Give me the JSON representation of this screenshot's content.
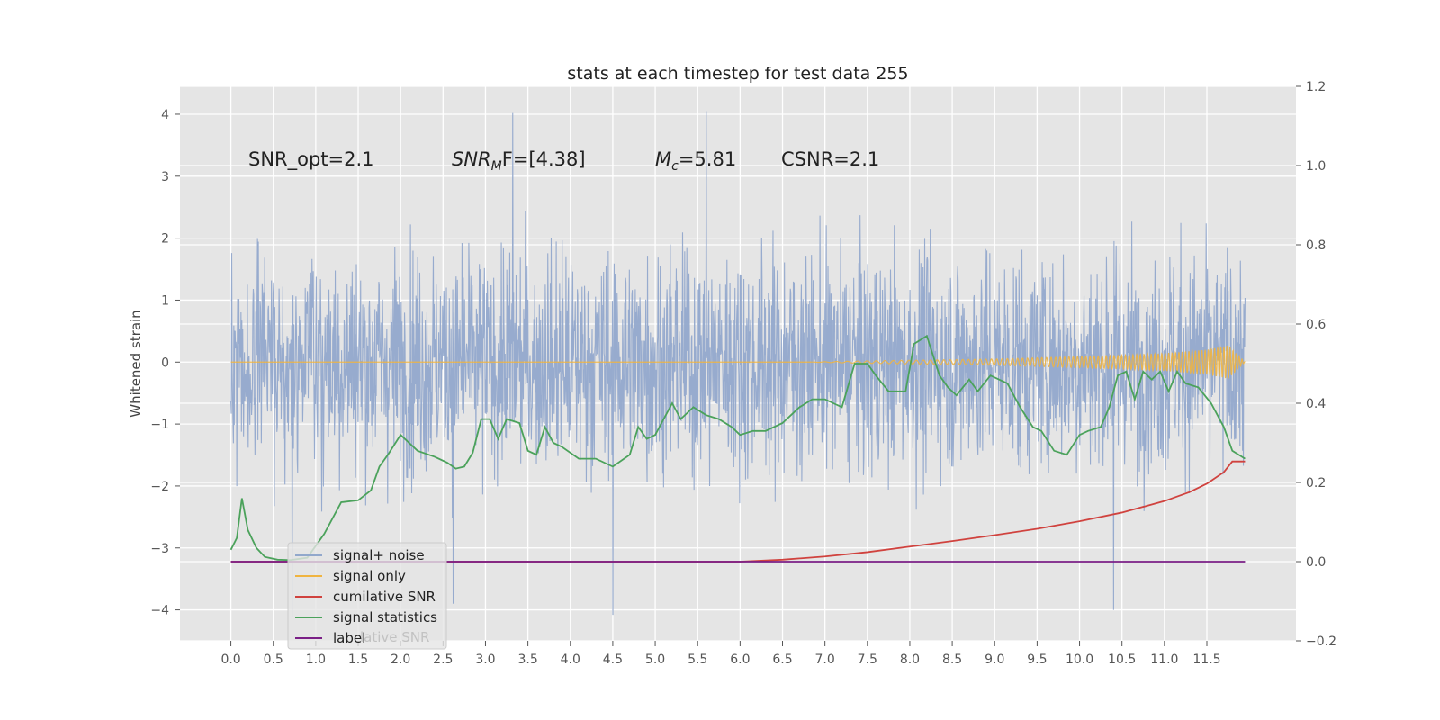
{
  "chart_data": {
    "type": "line",
    "title": "stats at each timestep for test data 255",
    "ylabel": "Whitened strain",
    "xlabel": "",
    "xlim": [
      -0.6,
      12.55
    ],
    "ylim": [
      -4.5,
      4.45
    ],
    "y2lim": [
      -0.2,
      1.2
    ],
    "x_ticks": [
      0.0,
      0.5,
      1.0,
      1.5,
      2.0,
      2.5,
      3.0,
      3.5,
      4.0,
      4.5,
      5.0,
      5.5,
      6.0,
      6.5,
      7.0,
      7.5,
      8.0,
      8.5,
      9.0,
      9.5,
      10.0,
      10.5,
      11.0,
      11.5
    ],
    "x_tick_labels": [
      "0.0",
      "0.5",
      "1.0",
      "1.5",
      "2.0",
      "2.5",
      "3.0",
      "3.5",
      "4.0",
      "4.5",
      "5.0",
      "5.5",
      "6.0",
      "6.5",
      "7.0",
      "7.5",
      "8.0",
      "8.5",
      "9.0",
      "9.5",
      "10.0",
      "10.5",
      "11.0",
      "11.5"
    ],
    "y_ticks": [
      -4,
      -3,
      -2,
      -1,
      0,
      1,
      2,
      3,
      4
    ],
    "y_tick_labels": [
      "−4",
      "−3",
      "−2",
      "−1",
      "0",
      "1",
      "2",
      "3",
      "4"
    ],
    "y2_ticks": [
      -0.2,
      0.0,
      0.2,
      0.4,
      0.6,
      0.8,
      1.0,
      1.2
    ],
    "y2_tick_labels": [
      "−0.2",
      "0.0",
      "0.2",
      "0.4",
      "0.6",
      "0.8",
      "1.0",
      "1.2"
    ],
    "grid": true,
    "annotations": [
      "SNR_opt=2.1",
      "SNR",
      "M",
      "F=[4.38]",
      "c",
      "=5.81",
      "CSNR=2.1"
    ],
    "legend_position": "lower-left",
    "legend": [
      "signal+ noise",
      "signal only",
      "cumilative SNR",
      "signal statistics",
      "label"
    ],
    "legend_overlap_text": "lative SNR",
    "series": [
      {
        "name": "signal+ noise",
        "axis": "left",
        "color": "#92a8cc",
        "style": "dense noise between about -3.5 and +3.5, samples from x=0.0 to 11.95",
        "x_range": [
          0.0,
          11.95
        ],
        "envelope": [
          -3.6,
          3.6
        ],
        "peaks": [
          [
            3.32,
            4.02
          ],
          [
            5.6,
            4.05
          ],
          [
            0.72,
            -4.12
          ],
          [
            4.5,
            -4.08
          ],
          [
            10.4,
            -4.0
          ],
          [
            2.62,
            -3.9
          ]
        ]
      },
      {
        "name": "signal only",
        "axis": "left",
        "color": "#f0b440",
        "x": [
          6.8,
          7.5,
          8.0,
          8.5,
          9.0,
          9.5,
          10.0,
          10.5,
          11.0,
          11.5,
          11.75,
          11.95
        ],
        "amplitude": [
          0.0,
          0.02,
          0.03,
          0.04,
          0.05,
          0.07,
          0.09,
          0.11,
          0.14,
          0.2,
          0.27,
          0.0
        ]
      },
      {
        "name": "cumilative SNR",
        "axis": "right",
        "color": "#d0423e",
        "x": [
          0.0,
          6.0,
          6.5,
          7.0,
          7.5,
          8.0,
          8.5,
          9.0,
          9.5,
          10.0,
          10.5,
          11.0,
          11.3,
          11.5,
          11.7,
          11.8,
          11.95
        ],
        "y": [
          0.0,
          0.0,
          0.005,
          0.013,
          0.024,
          0.038,
          0.052,
          0.067,
          0.083,
          0.102,
          0.124,
          0.153,
          0.176,
          0.197,
          0.226,
          0.253,
          0.253
        ]
      },
      {
        "name": "signal statistics",
        "axis": "right",
        "color": "#4ba25b",
        "x": [
          0.0,
          0.07,
          0.13,
          0.2,
          0.3,
          0.4,
          0.55,
          0.7,
          0.9,
          1.1,
          1.3,
          1.5,
          1.65,
          1.75,
          1.85,
          2.0,
          2.2,
          2.4,
          2.55,
          2.65,
          2.75,
          2.85,
          2.95,
          3.05,
          3.15,
          3.25,
          3.4,
          3.5,
          3.6,
          3.7,
          3.8,
          3.9,
          4.1,
          4.3,
          4.5,
          4.7,
          4.8,
          4.9,
          5.0,
          5.1,
          5.2,
          5.3,
          5.45,
          5.6,
          5.75,
          5.9,
          6.0,
          6.15,
          6.3,
          6.5,
          6.6,
          6.7,
          6.85,
          7.0,
          7.2,
          7.35,
          7.5,
          7.6,
          7.75,
          7.95,
          8.05,
          8.2,
          8.35,
          8.45,
          8.55,
          8.7,
          8.8,
          8.95,
          9.05,
          9.15,
          9.3,
          9.45,
          9.55,
          9.7,
          9.85,
          10.0,
          10.1,
          10.25,
          10.35,
          10.45,
          10.55,
          10.65,
          10.75,
          10.85,
          10.95,
          11.05,
          11.15,
          11.25,
          11.4,
          11.55,
          11.7,
          11.8,
          11.95
        ],
        "y": [
          0.03,
          0.06,
          0.16,
          0.08,
          0.035,
          0.012,
          0.005,
          0.004,
          0.01,
          0.07,
          0.15,
          0.155,
          0.18,
          0.24,
          0.27,
          0.32,
          0.28,
          0.265,
          0.25,
          0.235,
          0.24,
          0.275,
          0.36,
          0.36,
          0.31,
          0.36,
          0.35,
          0.28,
          0.27,
          0.34,
          0.3,
          0.29,
          0.26,
          0.26,
          0.24,
          0.27,
          0.34,
          0.31,
          0.32,
          0.36,
          0.4,
          0.36,
          0.39,
          0.37,
          0.36,
          0.34,
          0.32,
          0.33,
          0.33,
          0.35,
          0.37,
          0.39,
          0.41,
          0.41,
          0.39,
          0.5,
          0.5,
          0.47,
          0.43,
          0.43,
          0.55,
          0.57,
          0.47,
          0.44,
          0.42,
          0.46,
          0.43,
          0.47,
          0.46,
          0.45,
          0.39,
          0.34,
          0.33,
          0.28,
          0.27,
          0.32,
          0.33,
          0.34,
          0.39,
          0.47,
          0.48,
          0.41,
          0.48,
          0.46,
          0.48,
          0.43,
          0.48,
          0.45,
          0.44,
          0.4,
          0.34,
          0.28,
          0.26
        ]
      },
      {
        "name": "label",
        "axis": "right",
        "color": "#7a1f86",
        "x": [
          0.0,
          11.95
        ],
        "y": [
          0.0,
          0.0
        ]
      }
    ]
  }
}
